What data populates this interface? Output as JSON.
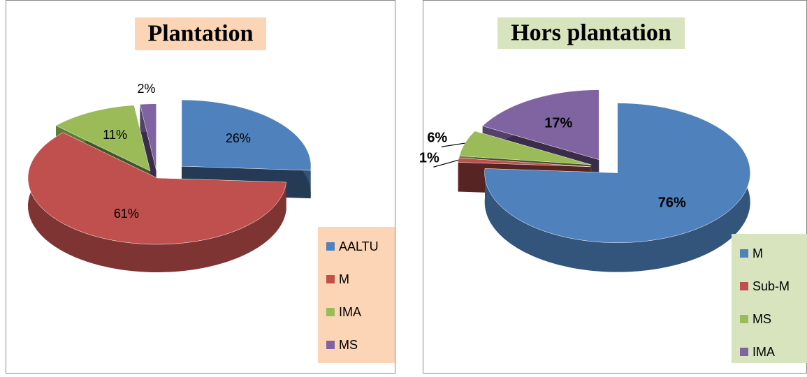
{
  "chart_data": [
    {
      "type": "pie",
      "title": "Plantation",
      "categories": [
        "AALTU",
        "M",
        "IMA",
        "MS"
      ],
      "values": [
        26,
        61,
        11,
        2
      ],
      "value_labels": [
        "26%",
        "61%",
        "11%",
        "2%"
      ],
      "colors": [
        "#4f81bd",
        "#c0504d",
        "#9bbb59",
        "#8064a2"
      ],
      "legend": "right"
    },
    {
      "type": "pie",
      "title": "Hors plantation",
      "categories": [
        "M",
        "Sub-M",
        "MS",
        "IMA"
      ],
      "values": [
        76,
        1,
        6,
        17
      ],
      "value_labels": [
        "76%",
        "1%",
        "6%",
        "17%"
      ],
      "colors": [
        "#4f81bd",
        "#c0504d",
        "#9bbb59",
        "#8064a2"
      ],
      "legend": "right"
    }
  ]
}
